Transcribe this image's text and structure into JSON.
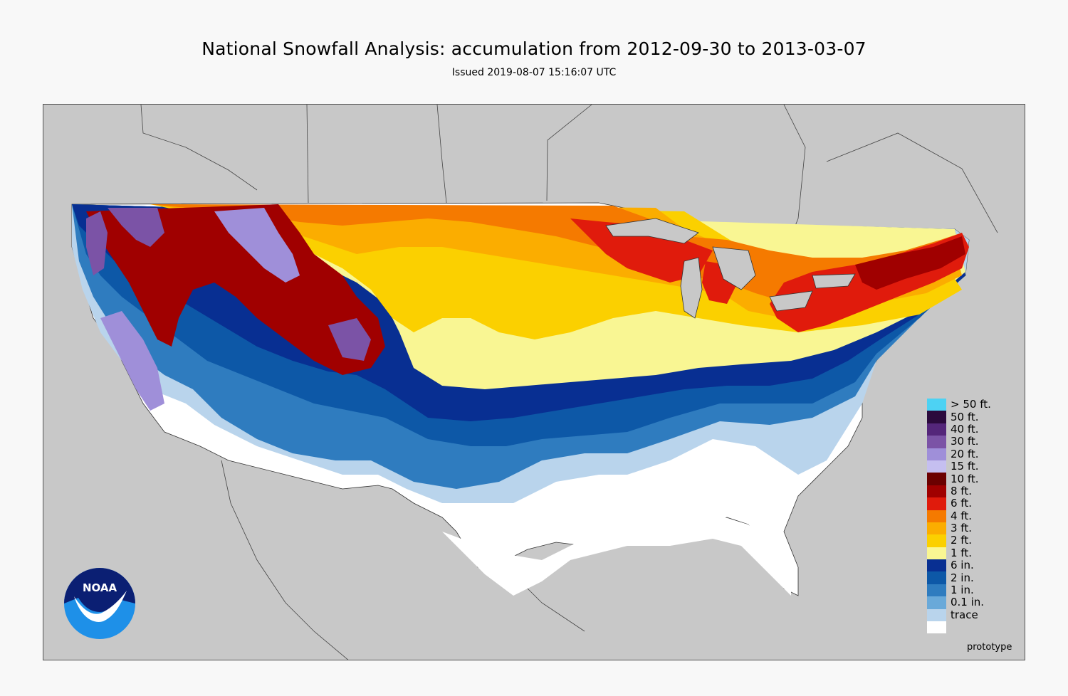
{
  "header": {
    "title": "National Snowfall Analysis: accumulation from 2012-09-30 to 2013-03-07",
    "issued": "Issued 2019-08-07 15:16:07 UTC"
  },
  "legend": [
    {
      "label": "> 50 ft.",
      "color": "#4dd2f3"
    },
    {
      "label": "50 ft.",
      "color": "#2b0a3d"
    },
    {
      "label": "40 ft.",
      "color": "#54267a"
    },
    {
      "label": "30 ft.",
      "color": "#7b53a6"
    },
    {
      "label": "20 ft.",
      "color": "#9f8fd9"
    },
    {
      "label": "15 ft.",
      "color": "#c5bff0"
    },
    {
      "label": "10 ft.",
      "color": "#6b0000"
    },
    {
      "label": "8 ft.",
      "color": "#a00000"
    },
    {
      "label": "6 ft.",
      "color": "#e01b0c"
    },
    {
      "label": "4 ft.",
      "color": "#f57a00"
    },
    {
      "label": "3 ft.",
      "color": "#fbad00"
    },
    {
      "label": "2 ft.",
      "color": "#fbd000"
    },
    {
      "label": "1 ft.",
      "color": "#f9f693"
    },
    {
      "label": "6 in.",
      "color": "#082f92"
    },
    {
      "label": "2 in.",
      "color": "#0d58a7"
    },
    {
      "label": "1 in.",
      "color": "#2f7cbf"
    },
    {
      "label": "0.1 in.",
      "color": "#69a9d9"
    },
    {
      "label": "trace",
      "color": "#b9d4ec"
    },
    {
      "label": "",
      "color": "#ffffff"
    }
  ],
  "footer": {
    "note": "prototype"
  },
  "logo": {
    "text": "NOAA",
    "icon": "noaa-logo-icon"
  }
}
